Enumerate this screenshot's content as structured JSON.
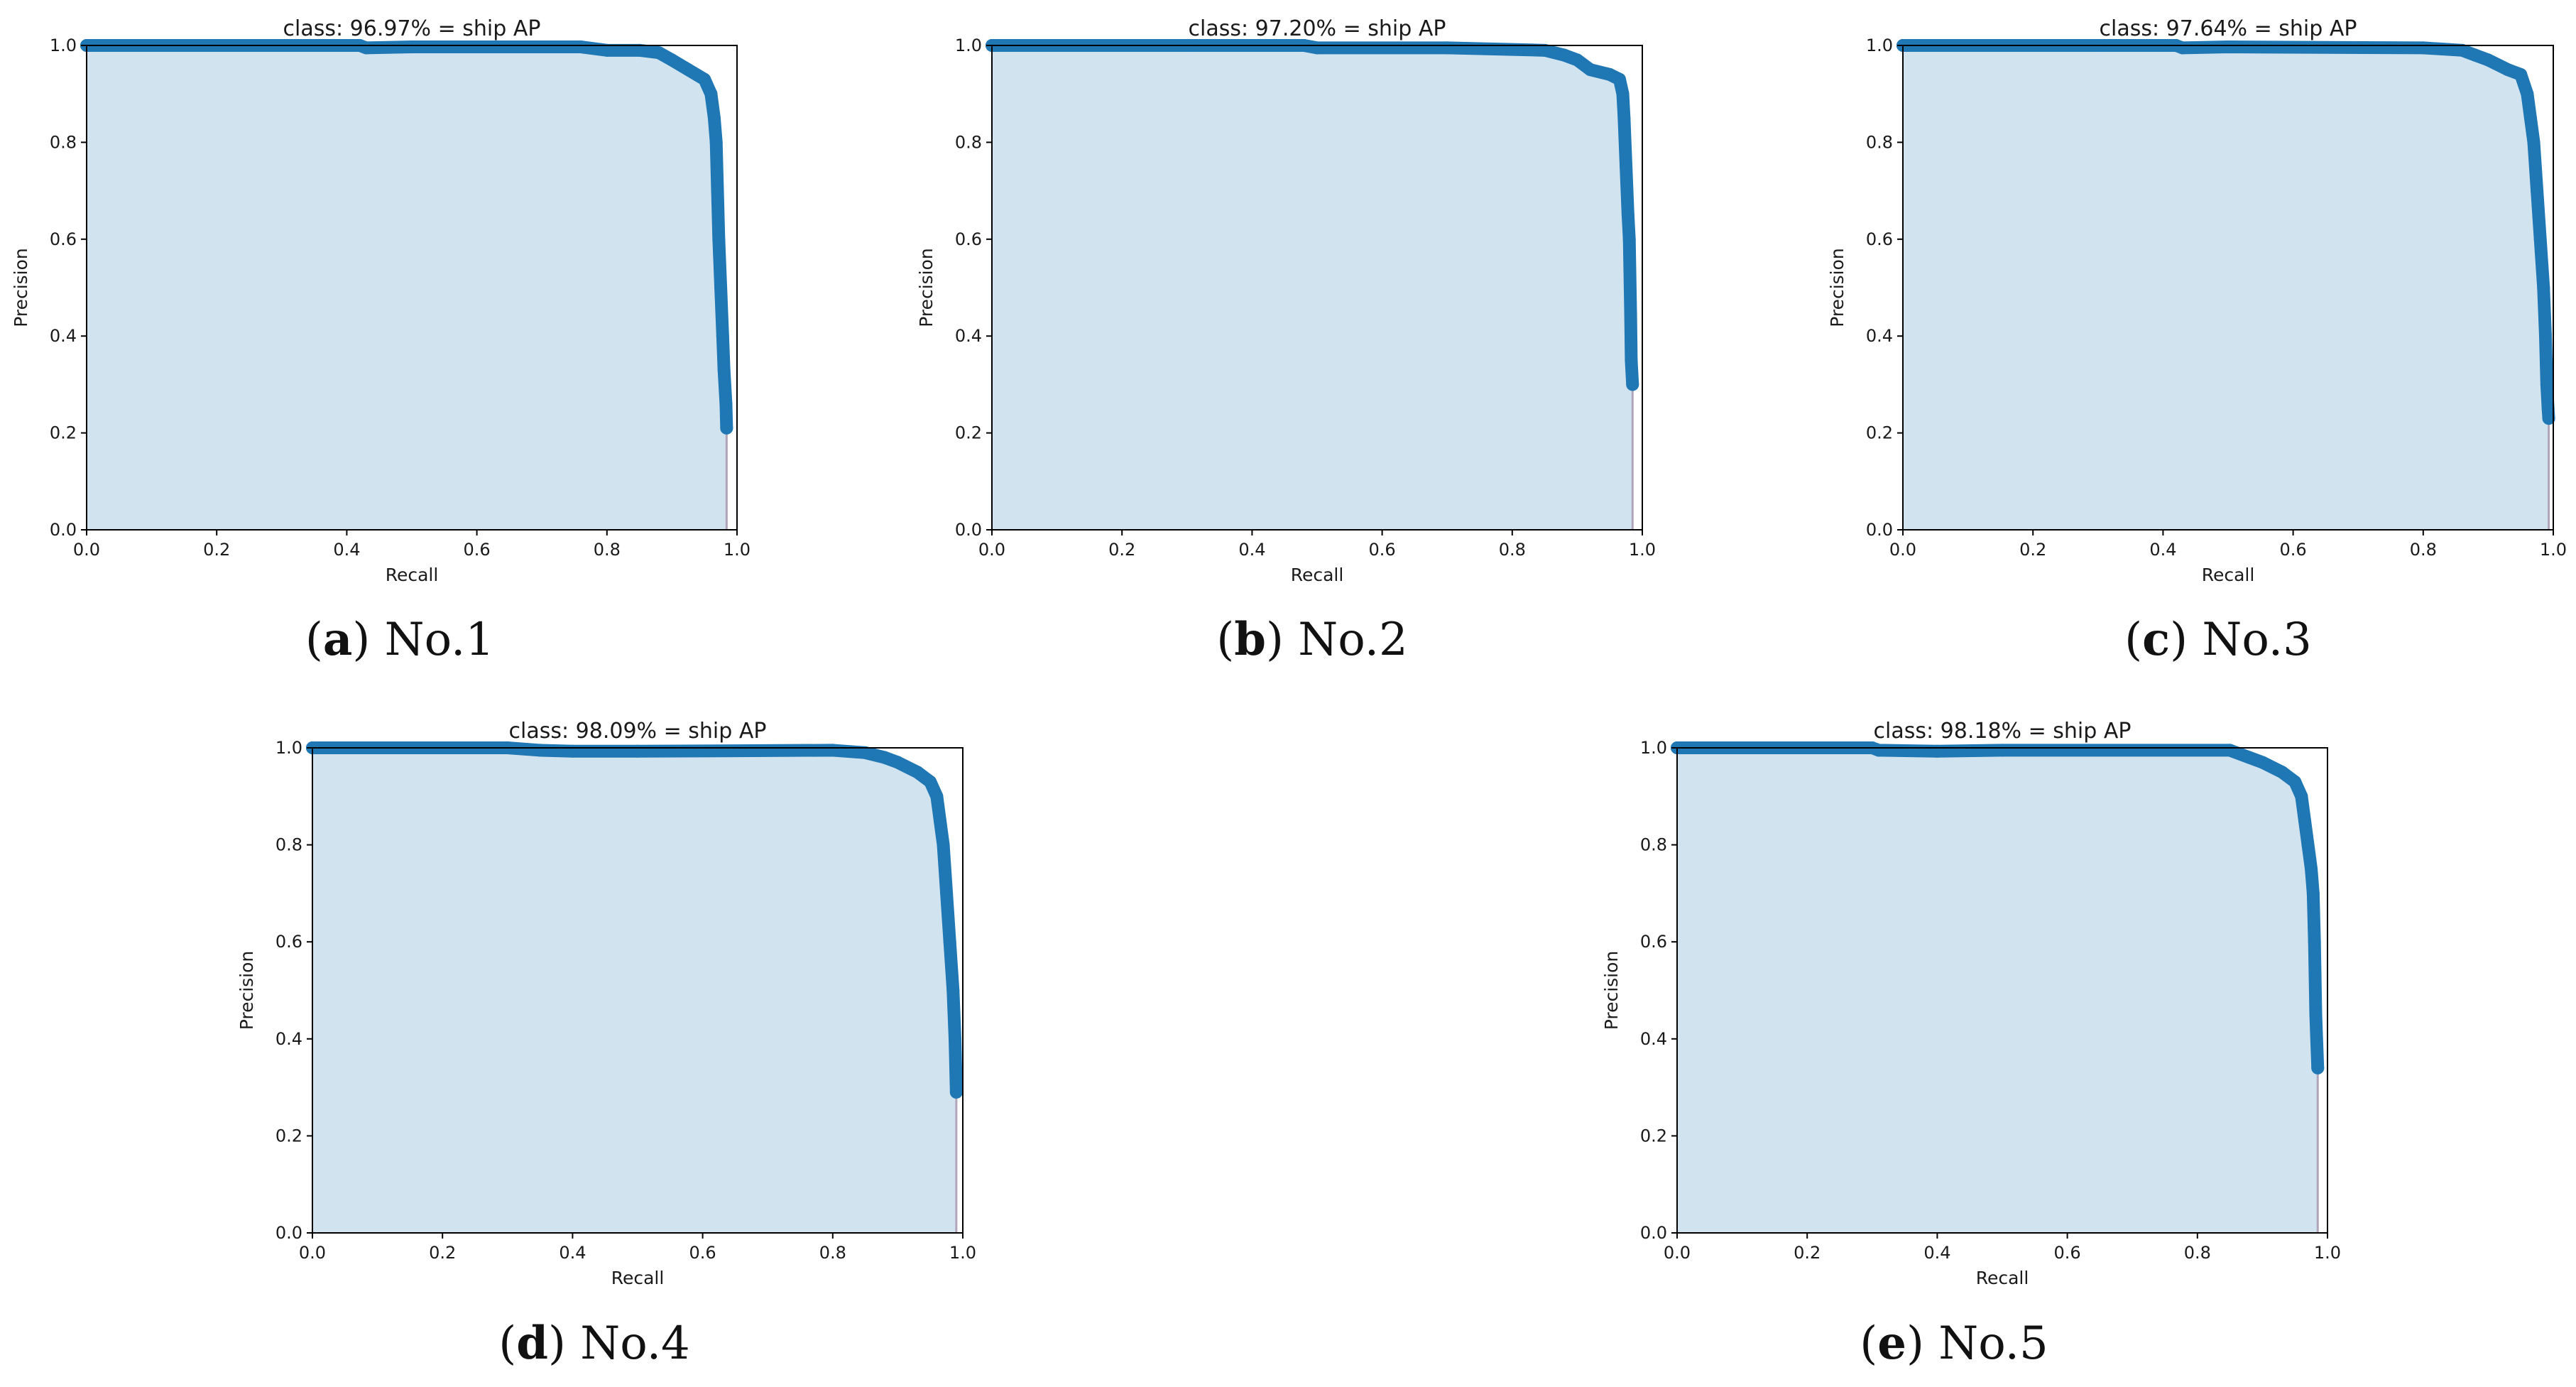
{
  "colors": {
    "curve": "#1f77b4",
    "fill": "#d2e3f0",
    "axes": "#000000",
    "text": "#1a1a1a",
    "dropline": "#b0a4ba"
  },
  "chart_data": [
    {
      "type": "area",
      "title": "class: 96.97% = ship AP",
      "xlabel": "Recall",
      "ylabel": "Precision",
      "xlim": [
        0,
        1
      ],
      "ylim": [
        0,
        1
      ],
      "xticks": [
        "0.0",
        "0.2",
        "0.4",
        "0.6",
        "0.8",
        "1.0"
      ],
      "yticks": [
        "0.0",
        "0.2",
        "0.4",
        "0.6",
        "0.8",
        "1.0"
      ],
      "grid": false,
      "caption": {
        "letter": "a",
        "name": "No.1"
      },
      "series": [
        {
          "x": [
            0.0,
            0.2,
            0.42,
            0.43,
            0.5,
            0.76,
            0.8,
            0.85,
            0.88,
            0.9,
            0.925,
            0.95,
            0.96,
            0.965,
            0.968,
            0.97,
            0.972,
            0.975,
            0.978,
            0.98,
            0.983,
            0.984
          ],
          "y": [
            1.0,
            1.0,
            1.0,
            0.995,
            0.997,
            0.997,
            0.99,
            0.99,
            0.985,
            0.97,
            0.95,
            0.93,
            0.9,
            0.85,
            0.8,
            0.7,
            0.6,
            0.5,
            0.4,
            0.33,
            0.26,
            0.21
          ]
        }
      ]
    },
    {
      "type": "area",
      "title": "class: 97.20% = ship AP",
      "xlabel": "Recall",
      "ylabel": "Precision",
      "xlim": [
        0,
        1
      ],
      "ylim": [
        0,
        1
      ],
      "xticks": [
        "0.0",
        "0.2",
        "0.4",
        "0.6",
        "0.8",
        "1.0"
      ],
      "yticks": [
        "0.0",
        "0.2",
        "0.4",
        "0.6",
        "0.8",
        "1.0"
      ],
      "grid": false,
      "caption": {
        "letter": "b",
        "name": "No.2"
      },
      "series": [
        {
          "x": [
            0.0,
            0.3,
            0.48,
            0.5,
            0.7,
            0.85,
            0.88,
            0.9,
            0.92,
            0.95,
            0.965,
            0.97,
            0.972,
            0.975,
            0.978,
            0.98,
            0.982,
            0.983,
            0.985
          ],
          "y": [
            1.0,
            1.0,
            1.0,
            0.995,
            0.995,
            0.99,
            0.98,
            0.97,
            0.95,
            0.94,
            0.93,
            0.9,
            0.85,
            0.75,
            0.65,
            0.6,
            0.45,
            0.35,
            0.3
          ]
        }
      ]
    },
    {
      "type": "area",
      "title": "class: 97.64% = ship AP",
      "xlabel": "Recall",
      "ylabel": "Precision",
      "xlim": [
        0,
        1
      ],
      "ylim": [
        0,
        1
      ],
      "xticks": [
        "0.0",
        "0.2",
        "0.4",
        "0.6",
        "0.8",
        "1.0"
      ],
      "yticks": [
        "0.0",
        "0.2",
        "0.4",
        "0.6",
        "0.8",
        "1.0"
      ],
      "grid": false,
      "caption": {
        "letter": "c",
        "name": "No.3"
      },
      "series": [
        {
          "x": [
            0.0,
            0.3,
            0.42,
            0.43,
            0.5,
            0.8,
            0.86,
            0.88,
            0.9,
            0.93,
            0.95,
            0.96,
            0.965,
            0.97,
            0.975,
            0.98,
            0.985,
            0.988,
            0.99,
            0.992,
            0.993
          ],
          "y": [
            1.0,
            1.0,
            1.0,
            0.995,
            0.997,
            0.995,
            0.99,
            0.98,
            0.97,
            0.95,
            0.94,
            0.9,
            0.85,
            0.8,
            0.7,
            0.6,
            0.5,
            0.4,
            0.3,
            0.25,
            0.23
          ]
        }
      ]
    },
    {
      "type": "area",
      "title": "class: 98.09% = ship AP",
      "xlabel": "Recall",
      "ylabel": "Precision",
      "xlim": [
        0,
        1
      ],
      "ylim": [
        0,
        1
      ],
      "xticks": [
        "0.0",
        "0.2",
        "0.4",
        "0.6",
        "0.8",
        "1.0"
      ],
      "yticks": [
        "0.0",
        "0.2",
        "0.4",
        "0.6",
        "0.8",
        "1.0"
      ],
      "grid": false,
      "caption": {
        "letter": "d",
        "name": "No.4"
      },
      "series": [
        {
          "x": [
            0.0,
            0.3,
            0.35,
            0.4,
            0.5,
            0.8,
            0.85,
            0.88,
            0.9,
            0.93,
            0.95,
            0.96,
            0.965,
            0.97,
            0.975,
            0.98,
            0.985,
            0.988,
            0.99
          ],
          "y": [
            1.0,
            1.0,
            0.995,
            0.993,
            0.993,
            0.995,
            0.99,
            0.98,
            0.97,
            0.95,
            0.93,
            0.9,
            0.85,
            0.8,
            0.7,
            0.6,
            0.5,
            0.4,
            0.29
          ]
        }
      ]
    },
    {
      "type": "area",
      "title": "class: 98.18% = ship AP",
      "xlabel": "Recall",
      "ylabel": "Precision",
      "xlim": [
        0,
        1
      ],
      "ylim": [
        0,
        1
      ],
      "xticks": [
        "0.0",
        "0.2",
        "0.4",
        "0.6",
        "0.8",
        "1.0"
      ],
      "yticks": [
        "0.0",
        "0.2",
        "0.4",
        "0.6",
        "0.8",
        "1.0"
      ],
      "grid": false,
      "caption": {
        "letter": "e",
        "name": "No.5"
      },
      "series": [
        {
          "x": [
            0.0,
            0.3,
            0.31,
            0.4,
            0.5,
            0.85,
            0.88,
            0.9,
            0.93,
            0.95,
            0.96,
            0.965,
            0.97,
            0.975,
            0.978,
            0.98,
            0.982,
            0.985
          ],
          "y": [
            1.0,
            1.0,
            0.995,
            0.993,
            0.995,
            0.995,
            0.98,
            0.97,
            0.95,
            0.93,
            0.9,
            0.85,
            0.8,
            0.75,
            0.7,
            0.6,
            0.45,
            0.34
          ]
        }
      ]
    }
  ]
}
